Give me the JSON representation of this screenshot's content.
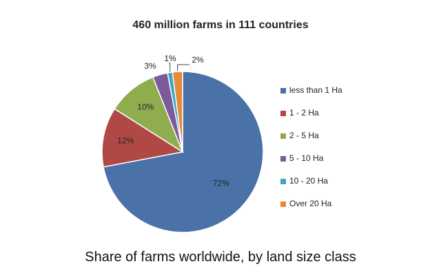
{
  "caption": "Share of farms worldwide, by land size class",
  "chart_data": {
    "type": "pie",
    "title": "460 million farms in 111 countries",
    "legend_position": "right",
    "categories": [
      "less than 1 Ha",
      "1 - 2 Ha",
      "2 - 5 Ha",
      "5 - 10 Ha",
      "10 - 20 Ha",
      "Over 20 Ha"
    ],
    "values": [
      72,
      12,
      10,
      3,
      1,
      2
    ],
    "labels": [
      "72%",
      "12%",
      "10%",
      "3%",
      "1%",
      "2%"
    ],
    "colors": [
      "#4a72a8",
      "#b04845",
      "#8fad4f",
      "#7b5b9b",
      "#3fa7c2",
      "#e58a36"
    ]
  }
}
